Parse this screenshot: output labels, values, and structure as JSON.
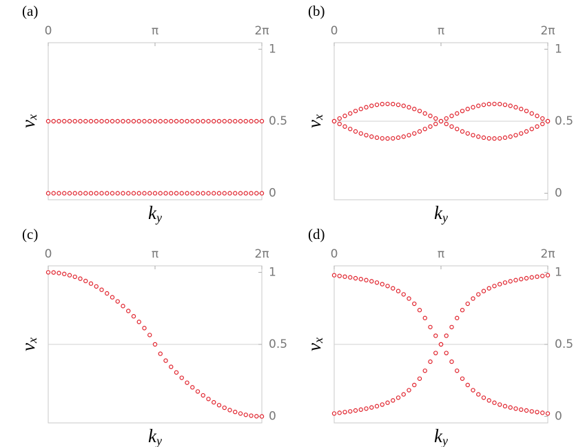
{
  "chart_data": [
    {
      "type": "scatter",
      "label": "(a)",
      "ylabel": {
        "text": "v",
        "sub": "x"
      },
      "xlabel": {
        "text": "k",
        "sub": "y"
      },
      "xlim": [
        0,
        6.2832
      ],
      "ylim": [
        -0.045,
        1.045
      ],
      "xticks": [
        0,
        {
          "value": 3.1416,
          "label": "π"
        },
        {
          "value": 6.2832,
          "label": "2π"
        }
      ],
      "yticks": [
        0,
        0.5,
        1
      ],
      "gridlines": [
        0.5
      ],
      "x": [
        0,
        0.1571,
        0.3142,
        0.4712,
        0.6283,
        0.7854,
        0.9425,
        1.0996,
        1.2566,
        1.4137,
        1.5708,
        1.7279,
        1.885,
        2.042,
        2.1991,
        2.3562,
        2.5133,
        2.6704,
        2.8274,
        2.9845,
        3.1416,
        3.2987,
        3.4558,
        3.6128,
        3.7699,
        3.927,
        4.0841,
        4.2412,
        4.3982,
        4.5553,
        4.7124,
        4.8695,
        5.0265,
        5.1836,
        5.3407,
        5.4978,
        5.6549,
        5.8119,
        5.969,
        6.1261,
        6.2832
      ],
      "series": [
        {
          "color": "#e0202a",
          "values": [
            0.5,
            0.5,
            0.5,
            0.5,
            0.5,
            0.5,
            0.5,
            0.5,
            0.5,
            0.5,
            0.5,
            0.5,
            0.5,
            0.5,
            0.5,
            0.5,
            0.5,
            0.5,
            0.5,
            0.5,
            0.5,
            0.5,
            0.5,
            0.5,
            0.5,
            0.5,
            0.5,
            0.5,
            0.5,
            0.5,
            0.5,
            0.5,
            0.5,
            0.5,
            0.5,
            0.5,
            0.5,
            0.5,
            0.5,
            0.5,
            0.5
          ]
        },
        {
          "color": "#e0202a",
          "values": [
            0,
            0,
            0,
            0,
            0,
            0,
            0,
            0,
            0,
            0,
            0,
            0,
            0,
            0,
            0,
            0,
            0,
            0,
            0,
            0,
            0,
            0,
            0,
            0,
            0,
            0,
            0,
            0,
            0,
            0,
            0,
            0,
            0,
            0,
            0,
            0,
            0,
            0,
            0,
            0,
            0
          ]
        }
      ]
    },
    {
      "type": "scatter",
      "label": "(b)",
      "ylabel": {
        "text": "v",
        "sub": "x"
      },
      "xlabel": {
        "text": "k",
        "sub": "y"
      },
      "xlim": [
        0,
        6.2832
      ],
      "ylim": [
        -0.045,
        1.045
      ],
      "xticks": [
        0,
        {
          "value": 3.1416,
          "label": "π"
        },
        {
          "value": 6.2832,
          "label": "2π"
        }
      ],
      "yticks": [
        0,
        0.5,
        1
      ],
      "gridlines": [
        0.5
      ],
      "x": [
        0,
        0.1571,
        0.3142,
        0.4712,
        0.6283,
        0.7854,
        0.9425,
        1.0996,
        1.2566,
        1.4137,
        1.5708,
        1.7279,
        1.885,
        2.042,
        2.1991,
        2.3562,
        2.5133,
        2.6704,
        2.8274,
        2.9845,
        3.1416,
        3.2987,
        3.4558,
        3.6128,
        3.7699,
        3.927,
        4.0841,
        4.2412,
        4.3982,
        4.5553,
        4.7124,
        4.8695,
        5.0265,
        5.1836,
        5.3407,
        5.4978,
        5.6549,
        5.8119,
        5.969,
        6.1261,
        6.2832
      ],
      "series": [
        {
          "color": "#e0202a",
          "values": [
            0.5,
            0.519,
            0.537,
            0.554,
            0.571,
            0.585,
            0.597,
            0.607,
            0.614,
            0.619,
            0.62,
            0.619,
            0.614,
            0.607,
            0.597,
            0.585,
            0.571,
            0.554,
            0.537,
            0.519,
            0.5,
            0.519,
            0.537,
            0.554,
            0.571,
            0.585,
            0.597,
            0.607,
            0.614,
            0.619,
            0.62,
            0.619,
            0.614,
            0.607,
            0.597,
            0.585,
            0.571,
            0.554,
            0.537,
            0.519,
            0.5
          ]
        },
        {
          "color": "#e0202a",
          "values": [
            0.5,
            0.481,
            0.463,
            0.446,
            0.429,
            0.415,
            0.403,
            0.393,
            0.386,
            0.381,
            0.38,
            0.381,
            0.386,
            0.393,
            0.403,
            0.415,
            0.429,
            0.446,
            0.463,
            0.481,
            0.5,
            0.481,
            0.463,
            0.446,
            0.429,
            0.415,
            0.403,
            0.393,
            0.386,
            0.381,
            0.38,
            0.381,
            0.386,
            0.393,
            0.403,
            0.415,
            0.429,
            0.446,
            0.463,
            0.481,
            0.5
          ]
        }
      ]
    },
    {
      "type": "scatter",
      "label": "(c)",
      "ylabel": {
        "text": "v",
        "sub": "x"
      },
      "xlabel": {
        "text": "k",
        "sub": "y"
      },
      "xlim": [
        0,
        6.2832
      ],
      "ylim": [
        -0.045,
        1.045
      ],
      "xticks": [
        0,
        {
          "value": 3.1416,
          "label": "π"
        },
        {
          "value": 6.2832,
          "label": "2π"
        }
      ],
      "yticks": [
        0,
        0.5,
        1
      ],
      "gridlines": [
        0.5
      ],
      "x": [
        0,
        0.1571,
        0.3142,
        0.4712,
        0.6283,
        0.7854,
        0.9425,
        1.0996,
        1.2566,
        1.4137,
        1.5708,
        1.7279,
        1.885,
        2.042,
        2.1991,
        2.3562,
        2.5133,
        2.6704,
        2.8274,
        2.9845,
        3.1416,
        3.2987,
        3.4558,
        3.6128,
        3.7699,
        3.927,
        4.0841,
        4.2412,
        4.3982,
        4.5553,
        4.7124,
        4.8695,
        5.0265,
        5.1836,
        5.3407,
        5.4978,
        5.6549,
        5.8119,
        5.969,
        6.1261,
        6.2832
      ],
      "series": [
        {
          "color": "#e0202a",
          "values": [
            1,
            0.999,
            0.995,
            0.989,
            0.98,
            0.969,
            0.956,
            0.94,
            0.922,
            0.902,
            0.879,
            0.854,
            0.827,
            0.798,
            0.766,
            0.732,
            0.695,
            0.656,
            0.613,
            0.565,
            0.5,
            0.435,
            0.387,
            0.344,
            0.305,
            0.268,
            0.234,
            0.202,
            0.173,
            0.146,
            0.121,
            0.098,
            0.078,
            0.06,
            0.044,
            0.031,
            0.02,
            0.011,
            0.005,
            0.001,
            0
          ]
        }
      ]
    },
    {
      "type": "scatter",
      "label": "(d)",
      "ylabel": {
        "text": "v",
        "sub": "x"
      },
      "xlabel": {
        "text": "k",
        "sub": "y"
      },
      "xlim": [
        0,
        6.2832
      ],
      "ylim": [
        -0.045,
        1.045
      ],
      "xticks": [
        0,
        {
          "value": 3.1416,
          "label": "π"
        },
        {
          "value": 6.2832,
          "label": "2π"
        }
      ],
      "yticks": [
        0,
        0.5,
        1
      ],
      "gridlines": [
        0.5
      ],
      "x": [
        0,
        0.1571,
        0.3142,
        0.4712,
        0.6283,
        0.7854,
        0.9425,
        1.0996,
        1.2566,
        1.4137,
        1.5708,
        1.7279,
        1.885,
        2.042,
        2.1991,
        2.3562,
        2.5133,
        2.6704,
        2.8274,
        2.9845,
        3.1416,
        3.2987,
        3.4558,
        3.6128,
        3.7699,
        3.927,
        4.0841,
        4.2412,
        4.3982,
        4.5553,
        4.7124,
        4.8695,
        5.0265,
        5.1836,
        5.3407,
        5.4978,
        5.6549,
        5.8119,
        5.969,
        6.1261,
        6.2832
      ],
      "series": [
        {
          "color": "#e0202a",
          "values": [
            0.98,
            0.975,
            0.97,
            0.965,
            0.959,
            0.953,
            0.946,
            0.938,
            0.929,
            0.918,
            0.905,
            0.889,
            0.87,
            0.847,
            0.818,
            0.782,
            0.738,
            0.683,
            0.62,
            0.56,
            0.5,
            0.44,
            0.38,
            0.317,
            0.262,
            0.218,
            0.182,
            0.153,
            0.13,
            0.111,
            0.095,
            0.082,
            0.071,
            0.062,
            0.054,
            0.047,
            0.041,
            0.035,
            0.03,
            0.025,
            0.02
          ]
        },
        {
          "color": "#e0202a",
          "values": [
            0.02,
            0.025,
            0.03,
            0.035,
            0.041,
            0.047,
            0.054,
            0.062,
            0.071,
            0.082,
            0.095,
            0.111,
            0.13,
            0.153,
            0.182,
            0.218,
            0.262,
            0.317,
            0.38,
            0.44,
            0.5,
            0.56,
            0.62,
            0.683,
            0.738,
            0.782,
            0.818,
            0.847,
            0.87,
            0.889,
            0.905,
            0.918,
            0.929,
            0.938,
            0.946,
            0.953,
            0.959,
            0.965,
            0.97,
            0.975,
            0.98
          ]
        }
      ]
    }
  ]
}
